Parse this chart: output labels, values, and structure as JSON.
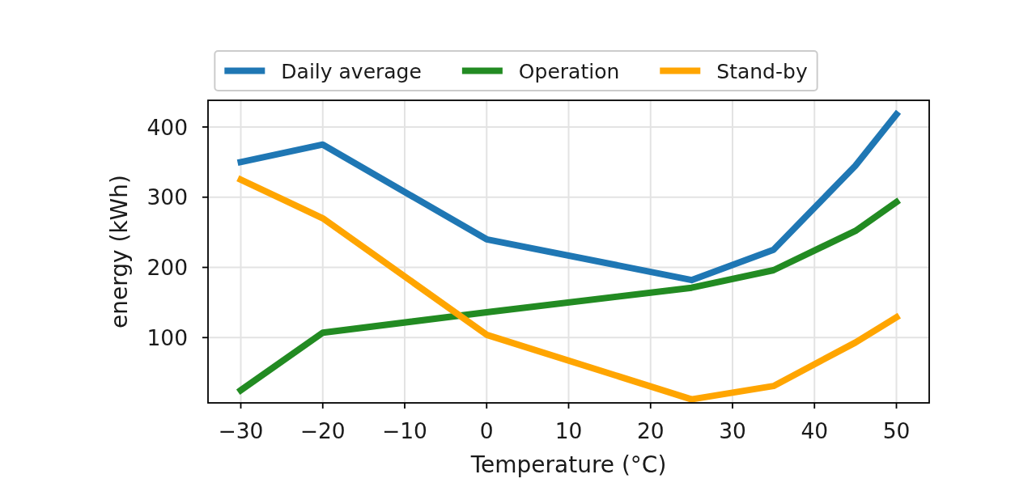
{
  "chart_data": {
    "type": "line",
    "xlabel": "Temperature (°C)",
    "ylabel": "energy (kWh)",
    "x": [
      -30,
      -20,
      0,
      25,
      35,
      45,
      50
    ],
    "series": [
      {
        "name": "Daily average",
        "color": "#1f77b4",
        "values": [
          350,
          375,
          240,
          182,
          225,
          345,
          418
        ]
      },
      {
        "name": "Operation",
        "color": "#228b22",
        "values": [
          25,
          107,
          136,
          171,
          196,
          252,
          293
        ]
      },
      {
        "name": "Stand-by",
        "color": "#ffa500",
        "values": [
          325,
          270,
          104,
          12,
          31,
          93,
          129
        ]
      }
    ],
    "xlim": [
      -34,
      54
    ],
    "ylim": [
      7,
      438
    ],
    "xticks": [
      {
        "value": -30,
        "label": "−30"
      },
      {
        "value": -20,
        "label": "−20"
      },
      {
        "value": -10,
        "label": "−10"
      },
      0,
      10,
      20,
      30,
      40,
      50
    ],
    "yticks": [
      100,
      200,
      300,
      400
    ],
    "grid": true,
    "legend": "top",
    "line_style": "solid"
  }
}
